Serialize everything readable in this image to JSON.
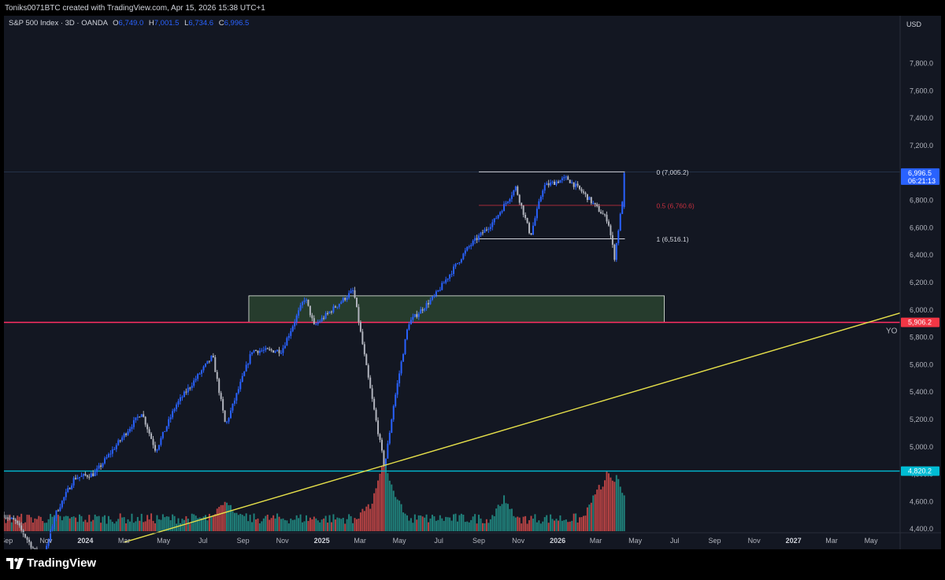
{
  "header": {
    "attribution": "Toniks0071BTC created with TradingView.com, Apr 15, 2026 15:38 UTC+1"
  },
  "legend": {
    "symbol": "S&P 500 Index · 3D · OANDA",
    "open_label": "O",
    "open": "6,749.0",
    "high_label": "H",
    "high": "7,001.5",
    "low_label": "L",
    "low": "6,734.6",
    "close_label": "C",
    "close": "6,996.5"
  },
  "brand": {
    "name": "TradingView",
    "logo_icon": "tradingview-logo-icon"
  },
  "colors": {
    "background": "#131722",
    "up": "#2962ff",
    "down": "#b2b5be",
    "vol_up": "#26a69a",
    "vol_down": "#ef5350",
    "zone": "#2e4a32",
    "red_line": "#f23645",
    "cyan": "#00bcd4",
    "trend": "#e6e04a"
  },
  "chart_data": {
    "type": "candlestick",
    "title": "S&P 500 Index · 3D · OANDA",
    "currency": "USD",
    "ylim": [
      4300,
      7950
    ],
    "x_ticks": [
      "Sep",
      "Nov",
      "2024",
      "Mar",
      "May",
      "Jul",
      "Sep",
      "Nov",
      "2025",
      "Mar",
      "May",
      "Jul",
      "Sep",
      "Nov",
      "2026",
      "Mar",
      "May",
      "Jul",
      "Sep",
      "Nov",
      "2027",
      "Mar",
      "May"
    ],
    "x_tick_dates": [
      "2023-09-01",
      "2023-11-01",
      "2024-01-01",
      "2024-03-01",
      "2024-05-01",
      "2024-07-01",
      "2024-09-01",
      "2024-11-01",
      "2025-01-01",
      "2025-03-01",
      "2025-05-01",
      "2025-07-01",
      "2025-09-01",
      "2025-11-01",
      "2026-01-01",
      "2026-03-01",
      "2026-05-01",
      "2026-07-01",
      "2026-09-01",
      "2026-11-01",
      "2027-01-01",
      "2027-03-01",
      "2027-05-01"
    ],
    "x_range": [
      "2023-08-28",
      "2027-06-15"
    ],
    "y_ticks": [
      "7,800.0",
      "7,600.0",
      "7,400.0",
      "7,200.0",
      "6,800.0",
      "6,600.0",
      "6,400.0",
      "6,200.0",
      "6,000.0",
      "5,800.0",
      "5,600.0",
      "5,400.0",
      "5,200.0",
      "5,000.0",
      "4,800.0",
      "4,600.0",
      "4,400.0"
    ],
    "y_tick_values": [
      7800,
      7600,
      7400,
      7200,
      6800,
      6600,
      6400,
      6200,
      6000,
      5800,
      5600,
      5400,
      5200,
      5000,
      4800,
      4600,
      4400
    ],
    "price_path": [
      [
        "2023-08-28",
        4500
      ],
      [
        "2023-09-15",
        4450
      ],
      [
        "2023-10-27",
        4150
      ],
      [
        "2023-11-15",
        4500
      ],
      [
        "2023-12-15",
        4770
      ],
      [
        "2024-01-15",
        4800
      ],
      [
        "2024-03-28",
        5250
      ],
      [
        "2024-04-19",
        4970
      ],
      [
        "2024-05-20",
        5300
      ],
      [
        "2024-07-16",
        5660
      ],
      [
        "2024-08-05",
        5150
      ],
      [
        "2024-09-15",
        5700
      ],
      [
        "2024-10-31",
        5700
      ],
      [
        "2024-12-06",
        6090
      ],
      [
        "2024-12-20",
        5880
      ],
      [
        "2025-02-19",
        6140
      ],
      [
        "2025-03-13",
        5520
      ],
      [
        "2025-04-08",
        4850
      ],
      [
        "2025-04-22",
        5300
      ],
      [
        "2025-05-15",
        5900
      ],
      [
        "2025-06-25",
        6100
      ],
      [
        "2025-08-15",
        6450
      ],
      [
        "2025-09-25",
        6650
      ],
      [
        "2025-10-28",
        6890
      ],
      [
        "2025-11-20",
        6540
      ],
      [
        "2025-12-10",
        6900
      ],
      [
        "2026-01-15",
        6960
      ],
      [
        "2026-02-10",
        6850
      ],
      [
        "2026-03-05",
        6730
      ],
      [
        "2026-03-20",
        6650
      ],
      [
        "2026-03-30",
        6380
      ],
      [
        "2026-04-06",
        6620
      ],
      [
        "2026-04-10",
        6750
      ],
      [
        "2026-04-15",
        6996.5
      ]
    ],
    "volume_peaks": [
      [
        "2024-08-05",
        1.0
      ],
      [
        "2025-03-13",
        0.75
      ],
      [
        "2025-04-08",
        2.3
      ],
      [
        "2025-04-22",
        1.2
      ],
      [
        "2025-10-10",
        1.0
      ],
      [
        "2026-03-05",
        1.4
      ],
      [
        "2026-03-20",
        2.0
      ],
      [
        "2026-04-02",
        1.8
      ]
    ],
    "fib_levels": [
      {
        "label": "0 (7,005.2)",
        "value": 7005.2
      },
      {
        "label": "0.5 (6,760.6)",
        "value": 6760.6
      },
      {
        "label": "1 (6,516.1)",
        "value": 6516.1
      }
    ],
    "fib_range": [
      "2025-09-01",
      "2026-04-15"
    ],
    "zone": {
      "from": 5906.2,
      "to": 6100,
      "start": "2024-09-10",
      "end": "2026-06-15"
    },
    "levels": [
      {
        "name": "5,906.2",
        "value": 5906.2,
        "note": "YO"
      },
      {
        "name": "4,820.2",
        "value": 4820.2
      }
    ],
    "trendline": {
      "from": [
        "2024-03-01",
        4300
      ],
      "to": [
        "2027-06-15",
        5975
      ]
    },
    "last_price": {
      "value": "6,996.5",
      "countdown": "06:21:13"
    }
  }
}
